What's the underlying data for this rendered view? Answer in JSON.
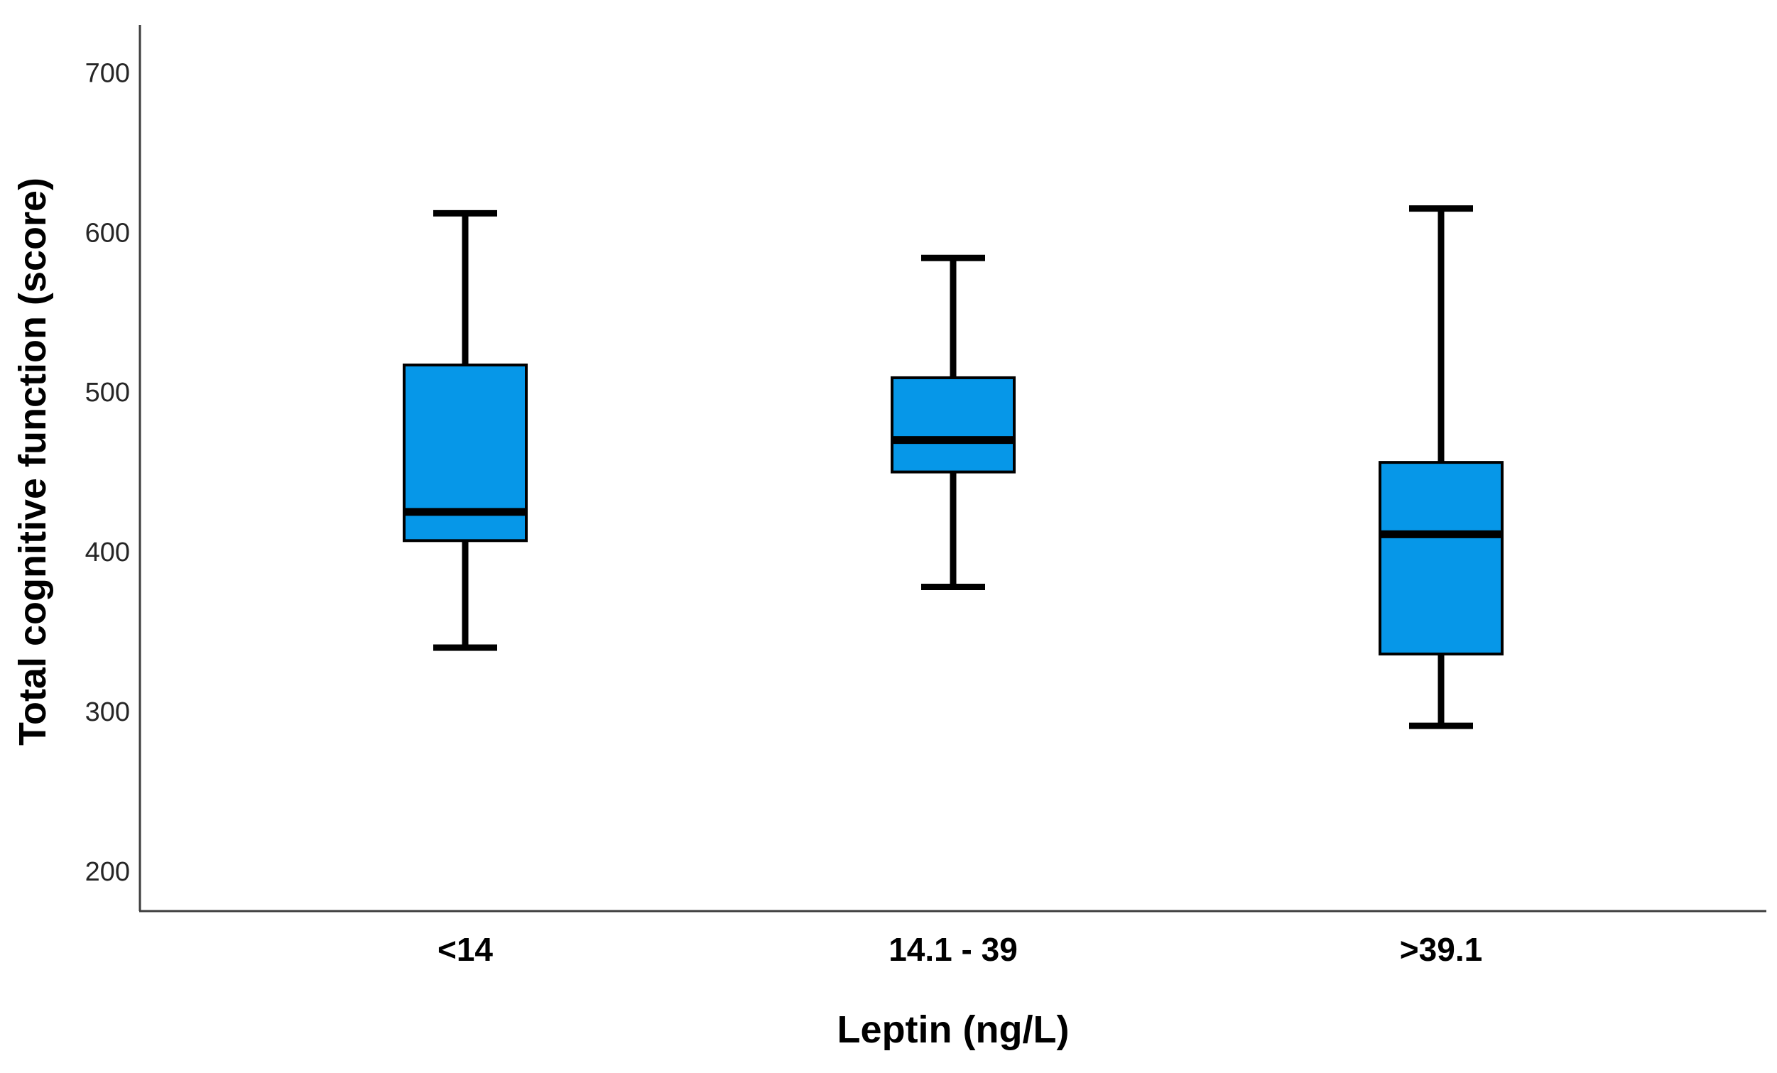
{
  "chart_data": {
    "type": "boxplot",
    "title": "",
    "xlabel": "Leptin (ng/L)",
    "ylabel": "Total cognitive function (score)",
    "categories": [
      "<14",
      "14.1 - 39",
      ">39.1"
    ],
    "y_ticks": [
      200,
      300,
      400,
      500,
      600,
      700
    ],
    "ylim": [
      175,
      730
    ],
    "grid": false,
    "legend": "none",
    "series": [
      {
        "category": "<14",
        "whisker_low": 340,
        "q1": 407,
        "median": 425,
        "q3": 517,
        "whisker_high": 612
      },
      {
        "category": "14.1 - 39",
        "whisker_low": 378,
        "q1": 450,
        "median": 470,
        "q3": 509,
        "whisker_high": 584
      },
      {
        "category": ">39.1",
        "whisker_low": 291,
        "q1": 336,
        "median": 411,
        "q3": 456,
        "whisker_high": 615
      }
    ],
    "colors": {
      "box_fill": "#0697E8",
      "box_border": "#000000",
      "median_line": "#000000",
      "whisker_line": "#000000",
      "axis_line": "#3D3D3D",
      "tick_label": "#262626",
      "category_label": "#000000",
      "axis_title": "#000000",
      "background": "#FFFFFF"
    }
  }
}
